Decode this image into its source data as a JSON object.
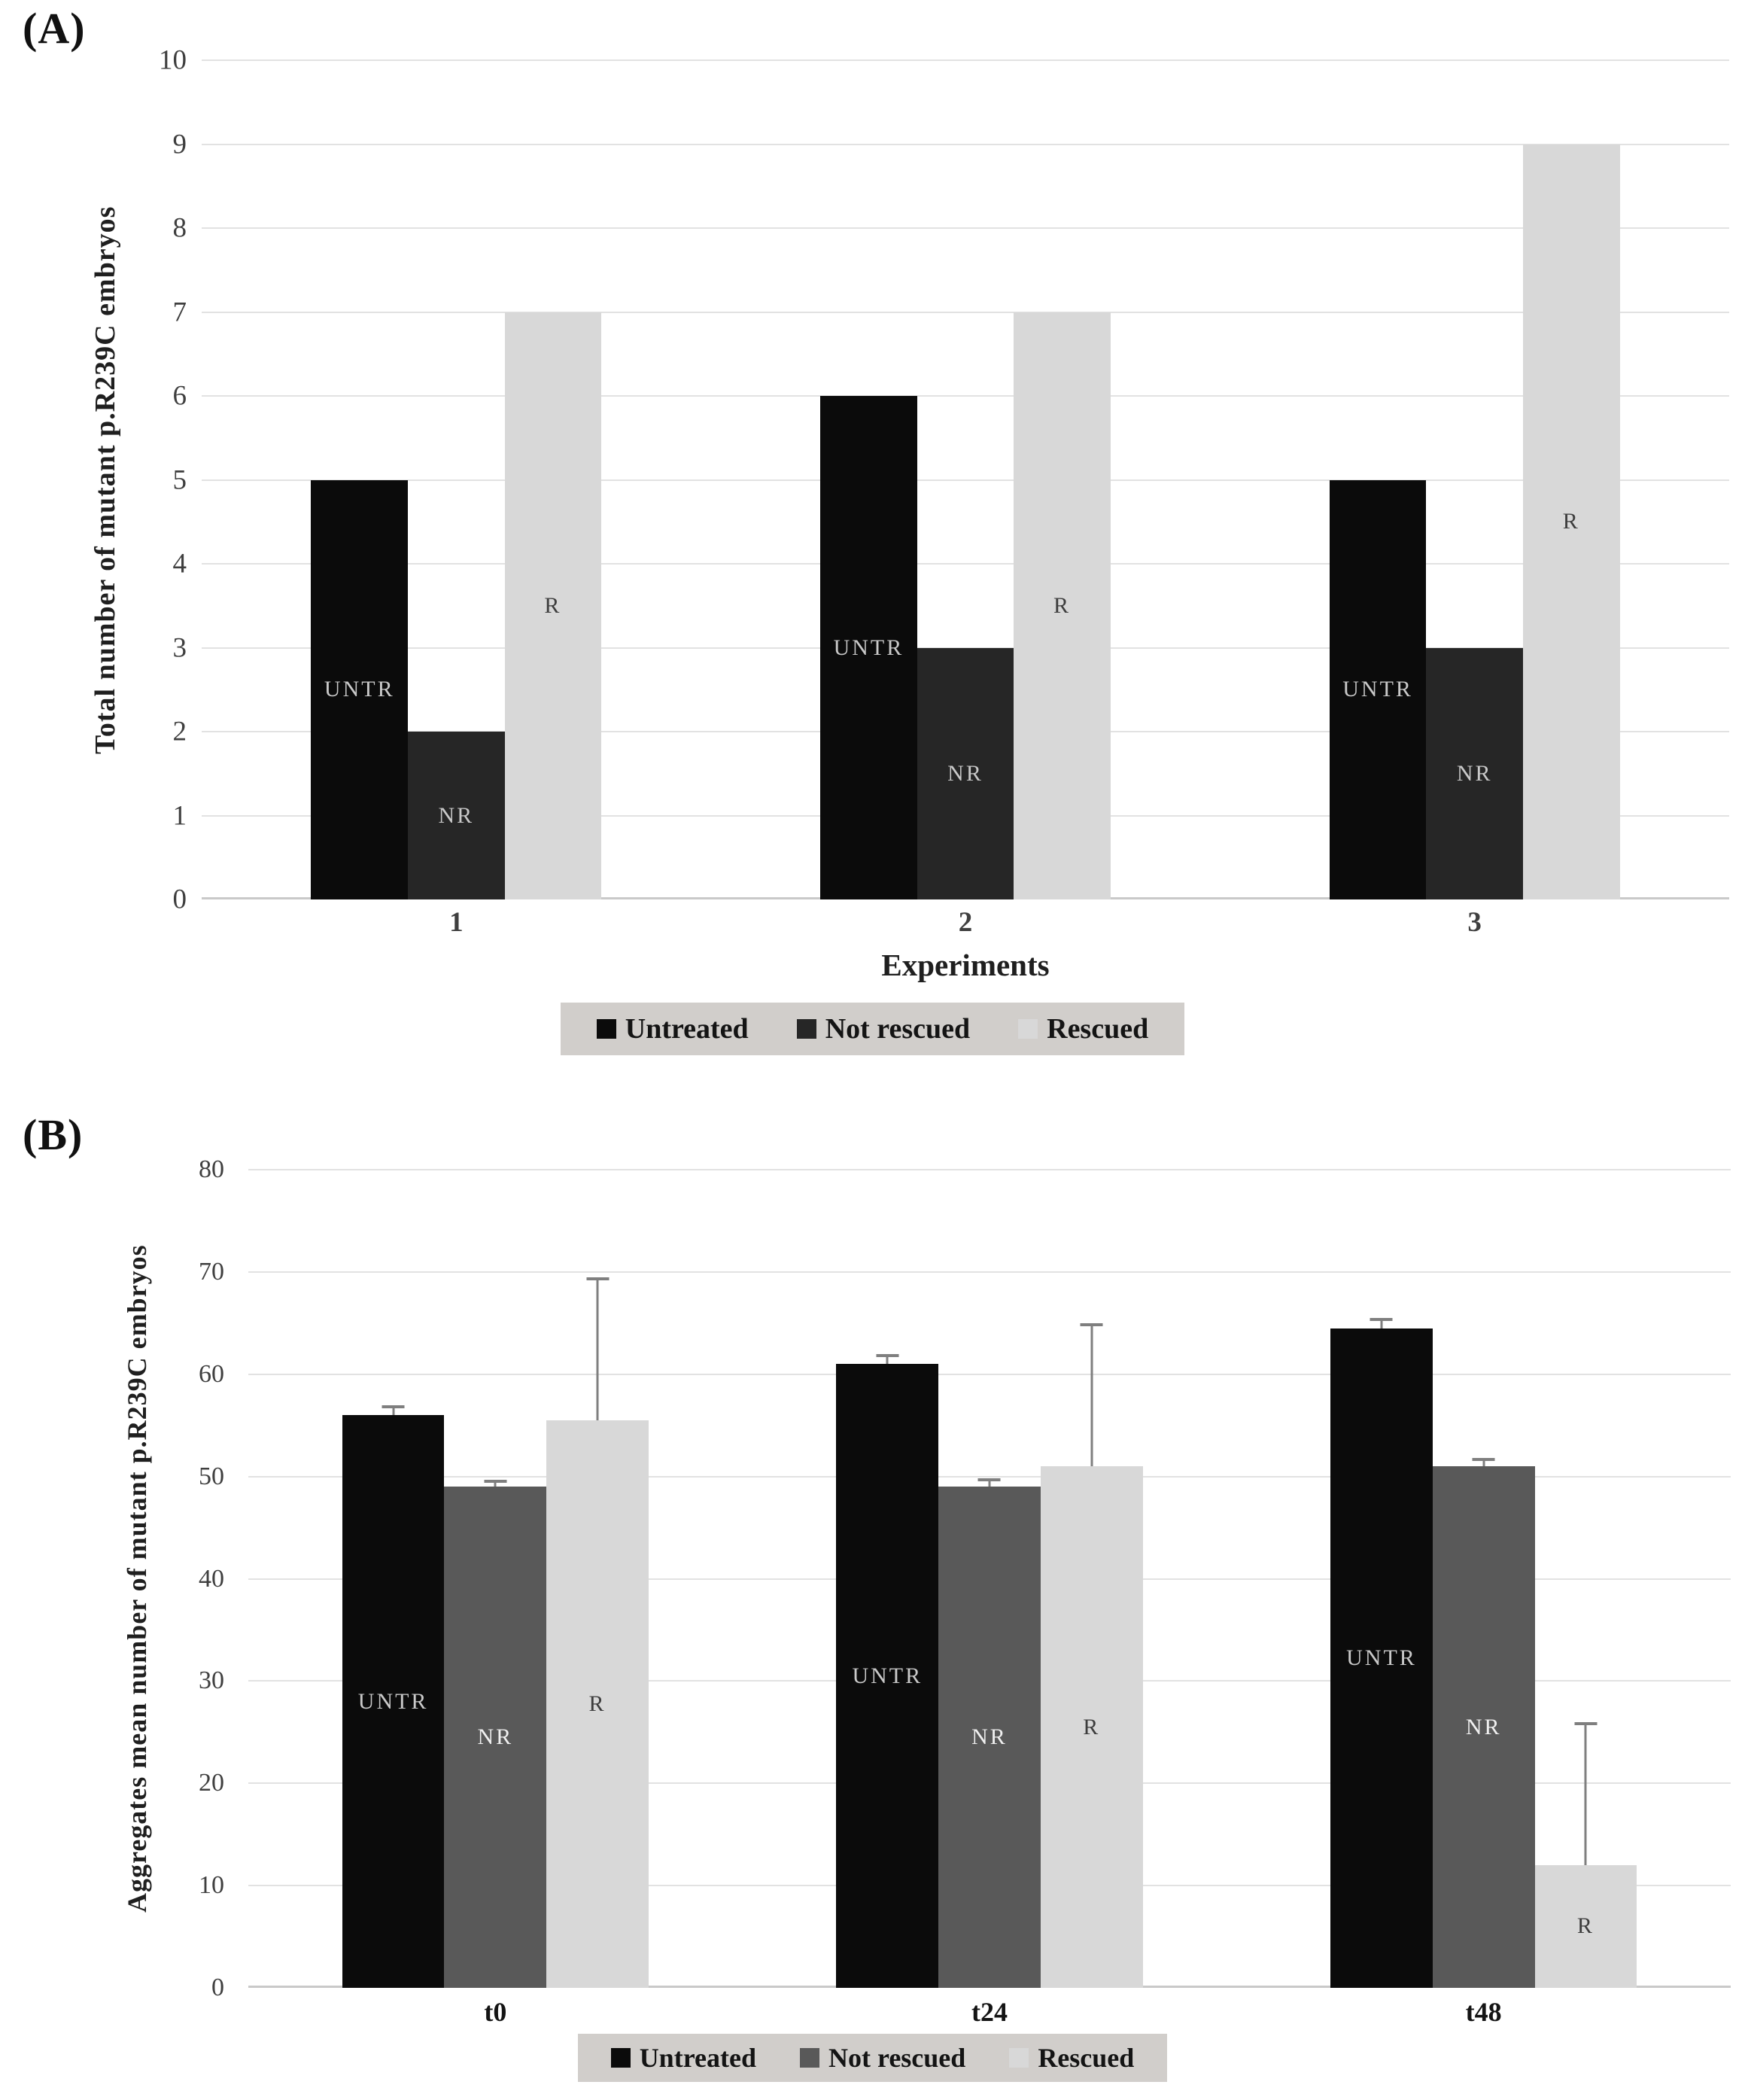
{
  "figure": {
    "background": "#ffffff",
    "panels": [
      {
        "label": "(A)"
      },
      {
        "label": "(B)"
      }
    ]
  },
  "style": {
    "gridline_color": "#e2e2e2",
    "axis_line_color": "#c9c9c9",
    "legend_background": "#d1cecb",
    "error_bar_color": "#7f7f7f",
    "tick_label_color": "#3f3f3f"
  },
  "chart_data": [
    {
      "type": "bar",
      "title": "",
      "ylabel": "Total number of mutant p.R239C embryos",
      "xlabel": "Experiments",
      "categories": [
        "1",
        "2",
        "3"
      ],
      "ylim": [
        0,
        10
      ],
      "yticks": [
        0,
        1,
        2,
        3,
        4,
        5,
        6,
        7,
        8,
        9,
        10
      ],
      "grid": true,
      "legend_position": "bottom",
      "series": [
        {
          "name": "Untreated",
          "bar_label": "UNTR",
          "color": "#0b0b0b",
          "label_color": "#c9c9c9",
          "values": [
            5,
            6,
            5
          ]
        },
        {
          "name": "Not rescued",
          "bar_label": "NR",
          "color": "#262626",
          "label_color": "#c9c9c9",
          "values": [
            2,
            3,
            3
          ]
        },
        {
          "name": "Rescued",
          "bar_label": "R",
          "color": "#d8d8d8",
          "label_color": "#3d3d3d",
          "values": [
            7,
            7,
            9
          ]
        }
      ]
    },
    {
      "type": "bar",
      "title": "",
      "ylabel": "Aggregates mean number of mutant p.R239C embryos",
      "xlabel": "",
      "categories": [
        "t0",
        "t24",
        "t48"
      ],
      "ylim": [
        0,
        80
      ],
      "yticks": [
        0,
        10,
        20,
        30,
        40,
        50,
        60,
        70,
        80
      ],
      "grid": true,
      "legend_position": "bottom",
      "series": [
        {
          "name": "Untreated",
          "bar_label": "UNTR",
          "color": "#0b0b0b",
          "label_color": "#c9c9c9",
          "values": [
            56,
            61,
            64.5
          ],
          "errors_plus": [
            1,
            1,
            1
          ]
        },
        {
          "name": "Not rescued",
          "bar_label": "NR",
          "color": "#595959",
          "label_color": "#f0f0f0",
          "values": [
            49,
            49,
            51
          ],
          "errors_plus": [
            0.7,
            0.8,
            0.8
          ]
        },
        {
          "name": "Rescued",
          "bar_label": "R",
          "color": "#d8d8d8",
          "label_color": "#3d3d3d",
          "values": [
            55.5,
            51,
            12
          ],
          "errors_plus": [
            14,
            14,
            14
          ]
        }
      ]
    }
  ]
}
